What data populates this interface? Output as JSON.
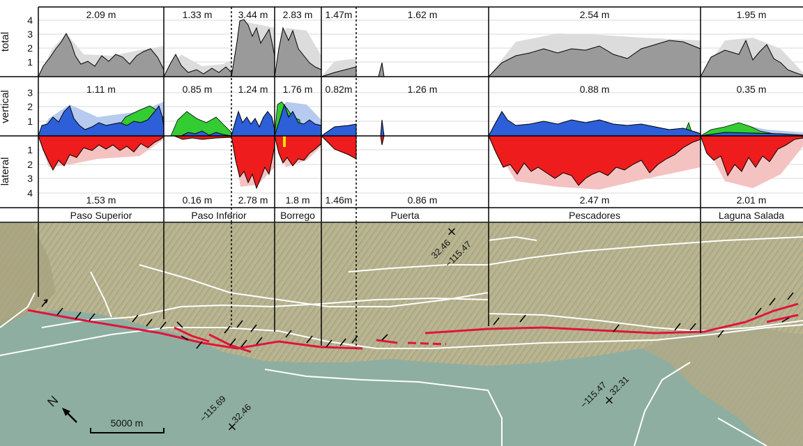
{
  "axes": {
    "total": {
      "label": "total",
      "ticks": [
        "1",
        "2",
        "3",
        "4"
      ]
    },
    "vertical": {
      "label": "vertical",
      "ticks": [
        "1",
        "2",
        "3"
      ]
    },
    "lateral": {
      "label": "lateral",
      "ticks": [
        "1",
        "2",
        "3",
        "4"
      ]
    }
  },
  "segments": [
    {
      "name": "Paso Superior",
      "total": "2.09 m",
      "vertical": "1.11 m",
      "lateral": "1.53 m"
    },
    {
      "name": "Paso Inferior",
      "total": "1.33 m",
      "vertical": "0.85 m",
      "lateral": "0.16 m"
    },
    {
      "name": "",
      "total": "3.44 m",
      "vertical": "1.24 m",
      "lateral": "2.78 m"
    },
    {
      "name": "Borrego",
      "total": "2.83 m",
      "vertical": "1.76 m",
      "lateral": "1.8 m"
    },
    {
      "name": "",
      "total": "1.47m",
      "vertical": "0.82m",
      "lateral": "1.46m"
    },
    {
      "name": "Puerta",
      "total": "1.62 m",
      "vertical": "1.26 m",
      "lateral": "0.86 m"
    },
    {
      "name": "Pescadores",
      "total": "2.54 m",
      "vertical": "0.88 m",
      "lateral": "2.47 m"
    },
    {
      "name": "Laguna Salada",
      "total": "1.95 m",
      "vertical": "0.35 m",
      "lateral": "2.01 m"
    }
  ],
  "map": {
    "north_label": "N",
    "scale_label": "5000 m",
    "coordinates": [
      {
        "lat": "32.46",
        "lon": "−115.47"
      },
      {
        "lat": "32.46",
        "lon": "−115.69"
      },
      {
        "lat": "32.31",
        "lon": "−115.47"
      }
    ]
  },
  "colors": {
    "total_fill": "#9a9a9a",
    "total_envelope": "#dcdcdc",
    "vertical_fill": "#2d5fd8",
    "vertical_secondary": "#33cc33",
    "lateral_fill": "#ee1c1c",
    "lateral_envelope": "#f5c2c2",
    "rupture": "#e0143c",
    "faults": "#ffffff",
    "sea": "#8aaea3",
    "terrain": "#b9ac84"
  }
}
